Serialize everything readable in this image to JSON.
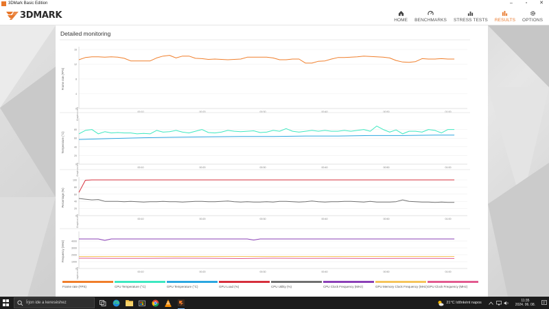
{
  "window": {
    "title": "3DMark Basic Edition"
  },
  "header": {
    "logo_text": "3DMARK",
    "nav": [
      {
        "label": "HOME",
        "icon": "home-icon",
        "active": false
      },
      {
        "label": "BENCHMARKS",
        "icon": "gauge-icon",
        "active": false
      },
      {
        "label": "STRESS TESTS",
        "icon": "bars-icon",
        "active": false
      },
      {
        "label": "RESULTS",
        "icon": "results-icon",
        "active": true
      },
      {
        "label": "OPTIONS",
        "icon": "gear-icon",
        "active": false
      }
    ]
  },
  "panel": {
    "title": "Detailed monitoring",
    "marker_label": "Graphics test"
  },
  "colors": {
    "accent": "#e8772a",
    "frame_rate": "#f07e2a",
    "cpu_temp": "#3de8c0",
    "gpu_temp": "#2aa6e0",
    "gpu_load": "#d62f3c",
    "cpu_utility": "#707070",
    "cpu_clock": "#8a3fb6",
    "gpu_mem_clock": "#f5c45a",
    "gpu_clock": "#e25a8f"
  },
  "chart_data": [
    {
      "type": "line",
      "ylabel": "Frame rate (FPS)",
      "ylim": [
        0,
        16
      ],
      "yticks": [
        "0",
        "4",
        "8",
        "12",
        "16"
      ],
      "xlim": [
        0,
        60
      ],
      "xticks": [
        "00:10",
        "00:20",
        "00:30",
        "00:40",
        "00:50",
        "01:00"
      ],
      "series": [
        {
          "name": "Frame rate (FPS)",
          "color_key": "frame_rate",
          "x": [
            0,
            1,
            2,
            3,
            4,
            5,
            6,
            7,
            8,
            9,
            10,
            11,
            12,
            13,
            14,
            15,
            16,
            17,
            18,
            19,
            20,
            21,
            22,
            23,
            24,
            25,
            26,
            27,
            28,
            29,
            30,
            31,
            32,
            33,
            34,
            35,
            36,
            37,
            38,
            39,
            40,
            41,
            42,
            43,
            44,
            45,
            46,
            47,
            48,
            49,
            50,
            51,
            52,
            53,
            54,
            55,
            56,
            57,
            58
          ],
          "y": [
            13.2,
            13.8,
            14.0,
            14.0,
            13.9,
            14.0,
            13.9,
            13.6,
            12.9,
            12.9,
            12.9,
            12.9,
            13.7,
            14.2,
            14.4,
            13.7,
            14.2,
            14.2,
            13.6,
            13.5,
            13.3,
            13.4,
            13.3,
            13.2,
            13.3,
            13.4,
            13.9,
            13.9,
            13.9,
            13.9,
            13.7,
            13.2,
            13.2,
            13.4,
            13.4,
            12.3,
            12.3,
            12.8,
            12.9,
            13.4,
            13.8,
            13.8,
            13.9,
            14.0,
            14.2,
            14.1,
            14.0,
            13.9,
            13.7,
            13.0,
            12.6,
            12.5,
            12.7,
            13.5,
            13.4,
            13.4,
            13.5,
            13.4,
            13.4
          ]
        }
      ]
    },
    {
      "type": "line",
      "ylabel": "Temperature (°C)",
      "ylim": [
        0,
        100
      ],
      "yticks": [
        "0",
        "20",
        "40",
        "60",
        "80"
      ],
      "xlim": [
        0,
        60
      ],
      "xticks": [
        "00:10",
        "00:20",
        "00:30",
        "00:40",
        "00:50",
        "01:00"
      ],
      "series": [
        {
          "name": "CPU Temperature (°C)",
          "color_key": "cpu_temp",
          "x": [
            0,
            1,
            2,
            3,
            4,
            5,
            6,
            7,
            8,
            9,
            10,
            11,
            12,
            13,
            14,
            15,
            16,
            17,
            18,
            19,
            20,
            21,
            22,
            23,
            24,
            25,
            26,
            27,
            28,
            29,
            30,
            31,
            32,
            33,
            34,
            35,
            36,
            37,
            38,
            39,
            40,
            41,
            42,
            43,
            44,
            45,
            46,
            47,
            48,
            49,
            50,
            51,
            52,
            53,
            54,
            55,
            56,
            57,
            58
          ],
          "y": [
            70,
            78,
            80,
            70,
            75,
            72,
            73,
            72,
            72,
            70,
            71,
            70,
            78,
            74,
            75,
            78,
            74,
            72,
            76,
            80,
            73,
            72,
            74,
            78,
            76,
            75,
            76,
            77,
            73,
            74,
            78,
            76,
            82,
            76,
            74,
            76,
            78,
            76,
            78,
            76,
            76,
            78,
            76,
            78,
            80,
            76,
            88,
            80,
            74,
            79,
            70,
            76,
            76,
            74,
            80,
            78,
            72,
            80,
            80
          ]
        },
        {
          "name": "GPU Temperature (°C)",
          "color_key": "gpu_temp",
          "x": [
            0,
            5,
            10,
            15,
            20,
            25,
            30,
            35,
            40,
            45,
            50,
            55,
            58
          ],
          "y": [
            57,
            59,
            61,
            62,
            63,
            64,
            64,
            65,
            65,
            66,
            66,
            67,
            67
          ]
        }
      ]
    },
    {
      "type": "line",
      "ylabel": "Percentage (%)",
      "ylim": [
        0,
        100
      ],
      "yticks": [
        "0",
        "20",
        "40",
        "60",
        "80",
        "100"
      ],
      "xlim": [
        0,
        60
      ],
      "xticks": [
        "00:10",
        "00:20",
        "00:30",
        "00:40",
        "00:50",
        "01:00"
      ],
      "series": [
        {
          "name": "GPU Load (%)",
          "color_key": "gpu_load",
          "x": [
            0,
            1,
            2,
            10,
            20,
            30,
            40,
            50,
            58
          ],
          "y": [
            65,
            99,
            100,
            100,
            100,
            100,
            100,
            100,
            100
          ]
        },
        {
          "name": "CPU Utility (%)",
          "color_key": "cpu_utility",
          "x": [
            0,
            1,
            2,
            3,
            4,
            5,
            6,
            7,
            8,
            9,
            10,
            11,
            12,
            13,
            14,
            15,
            16,
            17,
            18,
            19,
            20,
            21,
            22,
            23,
            24,
            25,
            26,
            27,
            28,
            29,
            30,
            31,
            32,
            33,
            34,
            35,
            36,
            37,
            38,
            39,
            40,
            41,
            42,
            43,
            44,
            45,
            46,
            47,
            48,
            49,
            50,
            51,
            52,
            53,
            54,
            55,
            56,
            57,
            58
          ],
          "y": [
            48,
            46,
            44,
            45,
            40,
            40,
            40,
            39,
            40,
            39,
            38,
            39,
            39,
            40,
            39,
            39,
            38,
            39,
            40,
            40,
            39,
            39,
            40,
            41,
            39,
            38,
            39,
            38,
            38,
            39,
            38,
            40,
            40,
            39,
            38,
            39,
            41,
            39,
            38,
            39,
            39,
            40,
            40,
            39,
            38,
            40,
            38,
            38,
            38,
            39,
            44,
            40,
            39,
            38,
            38,
            37,
            38,
            37,
            37
          ]
        }
      ]
    },
    {
      "type": "line",
      "ylabel": "Frequency (MHz)",
      "ylim": [
        0,
        5000
      ],
      "yticks": [
        "0",
        "1000",
        "2000",
        "3000",
        "4000"
      ],
      "xlim": [
        0,
        60
      ],
      "xticks": [
        "00:10",
        "00:20",
        "00:30",
        "00:40",
        "00:50",
        "01:00"
      ],
      "series": [
        {
          "name": "CPU Clock Frequency (MHz)",
          "color_key": "cpu_clock",
          "x": [
            0,
            3,
            4,
            5,
            10,
            20,
            26,
            27,
            28,
            30,
            40,
            50,
            58
          ],
          "y": [
            4300,
            4300,
            4100,
            4300,
            4300,
            4300,
            4300,
            4150,
            4300,
            4300,
            4300,
            4300,
            4300
          ]
        },
        {
          "name": "GPU Memory Clock Frequency (MHz)",
          "color_key": "gpu_mem_clock",
          "x": [
            0,
            58
          ],
          "y": [
            1750,
            1750
          ]
        },
        {
          "name": "GPU Clock Frequency (MHz)",
          "color_key": "gpu_clock",
          "x": [
            0,
            5,
            10,
            15,
            20,
            25,
            30,
            35,
            40,
            45,
            50,
            55,
            58
          ],
          "y": [
            1500,
            1480,
            1470,
            1500,
            1490,
            1450,
            1500,
            1470,
            1490,
            1460,
            1480,
            1470,
            1460
          ]
        }
      ]
    }
  ],
  "legend": [
    {
      "label": "Frame rate (FPS)",
      "color_key": "frame_rate"
    },
    {
      "label": "CPU Temperature (°C)",
      "color_key": "cpu_temp"
    },
    {
      "label": "GPU Temperature (°C)",
      "color_key": "gpu_temp"
    },
    {
      "label": "GPU Load (%)",
      "color_key": "gpu_load"
    },
    {
      "label": "CPU Utility (%)",
      "color_key": "cpu_utility"
    },
    {
      "label": "CPU Clock Frequency (MHz)",
      "color_key": "cpu_clock"
    },
    {
      "label": "GPU Memory Clock Frequency (MHz)",
      "color_key": "gpu_mem_clock"
    },
    {
      "label": "GPU Clock Frequency (MHz)",
      "color_key": "gpu_clock"
    }
  ],
  "taskbar": {
    "search_placeholder": "Írjon ide a kereséshez",
    "apps": [
      "task-view-icon",
      "edge-icon",
      "file-explorer-icon",
      "store-icon",
      "chrome-icon",
      "vlc-icon",
      "3dmark-icon"
    ],
    "weather": "21°C  Időnként napos",
    "time": "11:35",
    "date": "2024. 06. 08."
  }
}
